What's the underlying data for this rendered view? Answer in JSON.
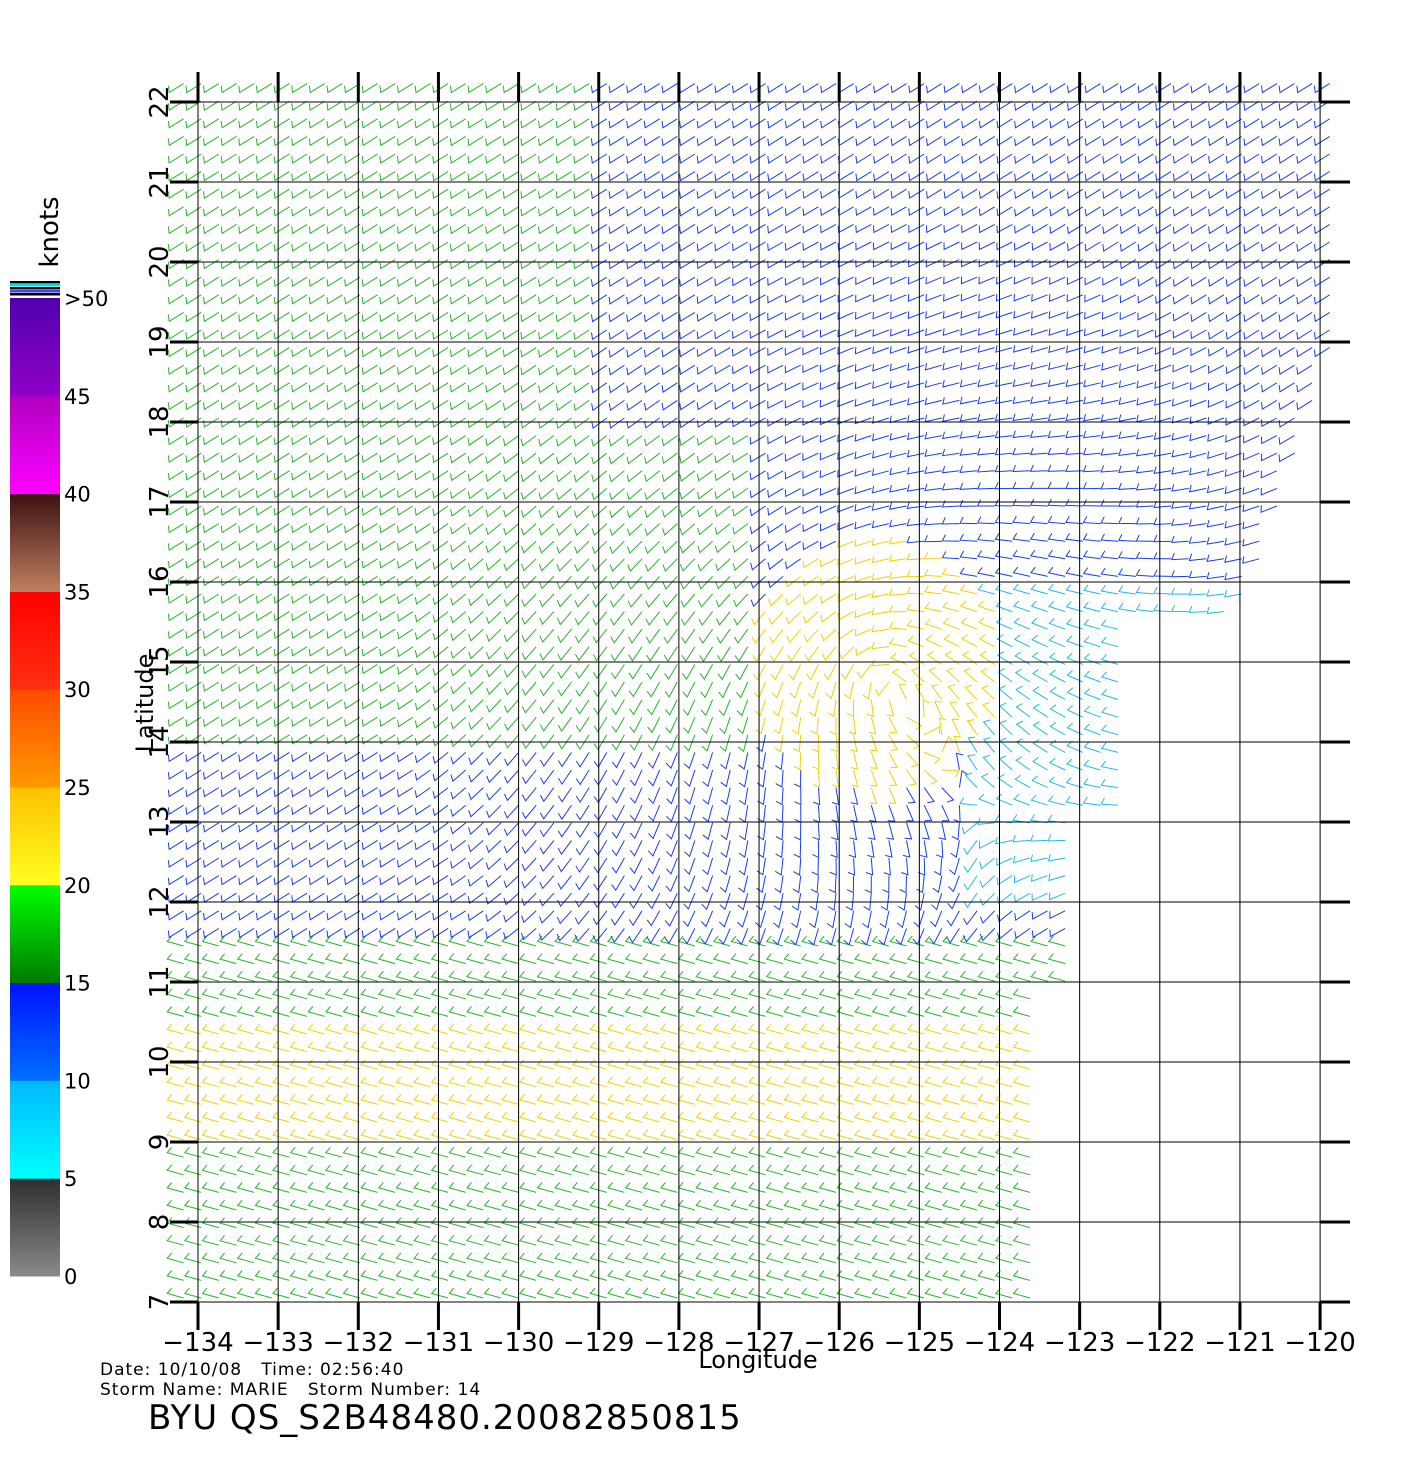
{
  "chart": {
    "lon_ticks": [
      "-134",
      "-133",
      "-132",
      "-131",
      "-130",
      "-129",
      "-128",
      "-127",
      "-126",
      "-125",
      "-124",
      "-123",
      "-122",
      "-121",
      "-120"
    ],
    "lat_ticks": [
      "7",
      "8",
      "9",
      "10",
      "11",
      "12",
      "13",
      "14",
      "15",
      "16",
      "17",
      "18",
      "19",
      "20",
      "21",
      "22"
    ],
    "xlabel": "Longitude",
    "ylabel": "Latitude",
    "colorbar_title": "knots",
    "colorbar_labels": [
      "0",
      "5",
      "10",
      "15",
      "20",
      "25",
      "30",
      "35",
      "40",
      "45",
      ">50"
    ],
    "colorbar_colors": {
      "0-5": "#5a5a5a",
      "5-10": "#00e6e6",
      "10-15": "#0a4cff",
      "15-20": "#0fb40f",
      "20-25": "#ffd400",
      "25-30": "#ff7a00",
      "30-35": "#ff1a0a",
      "35-40": "#8c4a32",
      "40-45": "#d000d6",
      "45-50": "#6a00c8"
    },
    "storm_center": {
      "lon": -125.5,
      "lat": 15.0
    },
    "speed_regions_note_colors": [
      "#1030d8",
      "#1ea01e",
      "#e6cc00",
      "#2aa0e0",
      "#e05010"
    ]
  },
  "footer": {
    "date_label": "Date:",
    "date": "10/10/08",
    "time_label": "Time:",
    "time": "02:56:40",
    "storm_label": "Storm Name:",
    "storm_name": "MARIE",
    "storm_number_label": "Storm Number:",
    "storm_number": "14",
    "line1": "Date: 10/10/08   Time: 02:56:40",
    "line2": "Storm Name: MARIE   Storm Number: 14",
    "product": "BYU QS_S2B48480.20082850815"
  }
}
